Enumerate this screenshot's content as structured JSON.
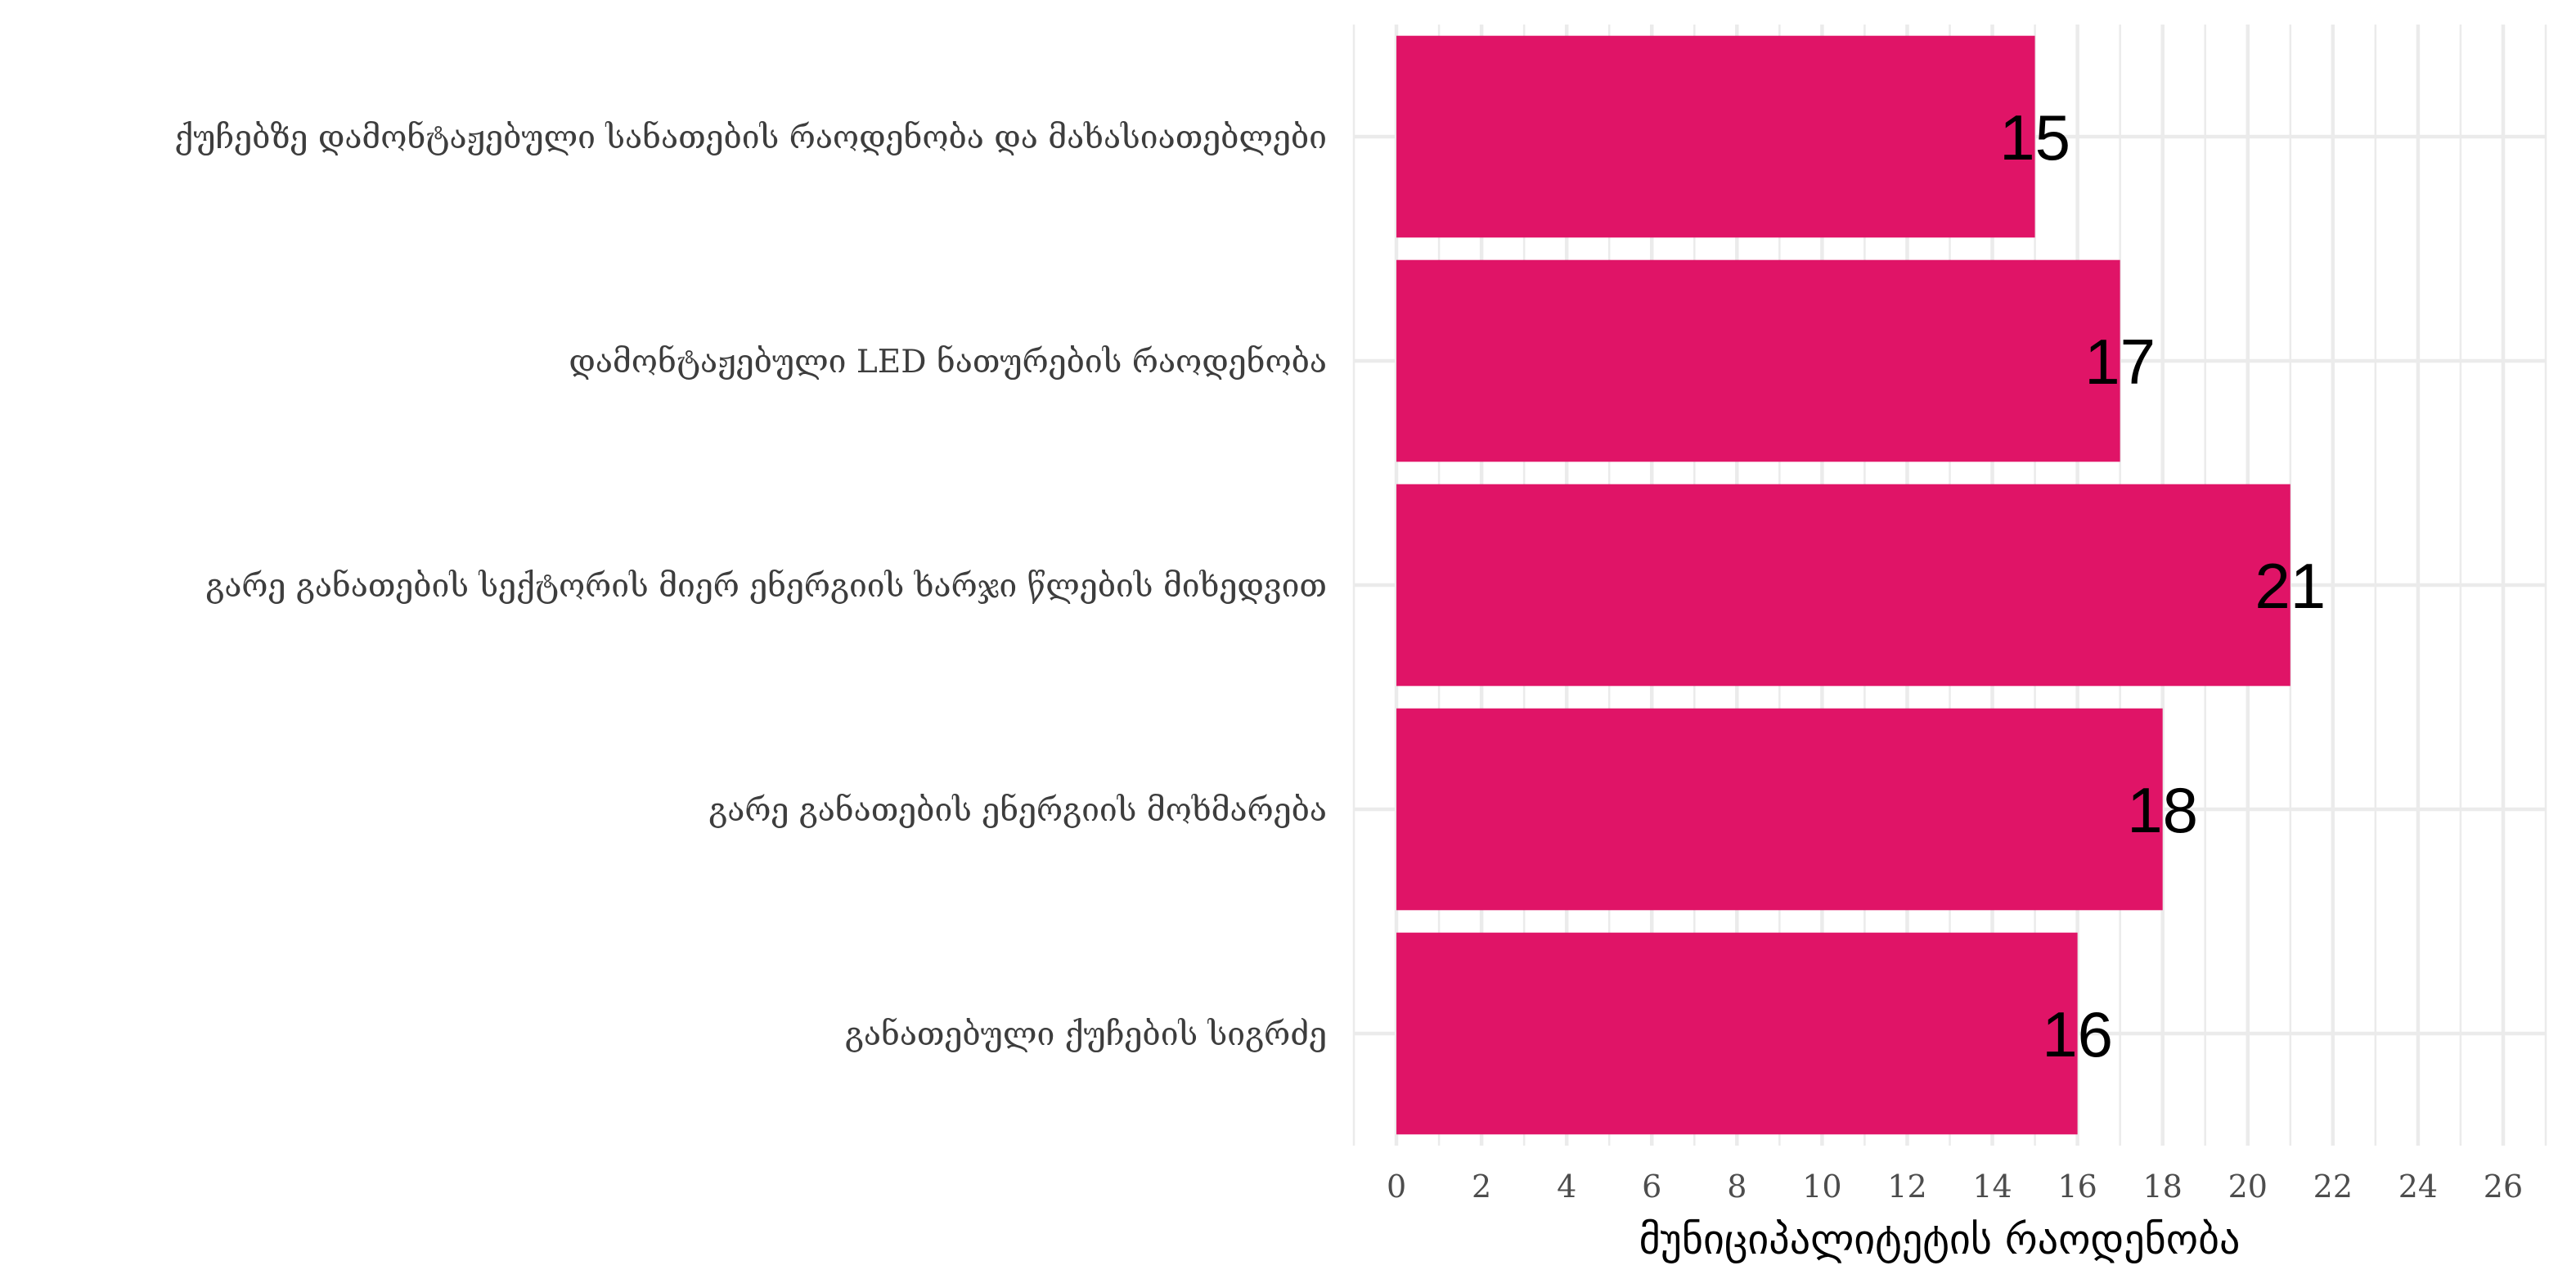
{
  "chart_data": {
    "type": "bar",
    "orientation": "horizontal",
    "categories": [
      "ქუჩებზე დამონტაჟებული სანათების რაოდენობა და მახასიათებლები",
      "დამონტაჟებული LED ნათურების რაოდენობა",
      "გარე განათების სექტორის მიერ ენერგიის ხარჯი წლების მიხედვით",
      "გარე განათების ენერგიის მოხმარება",
      "განათებული ქუჩების სიგრძე"
    ],
    "values": [
      15,
      17,
      21,
      18,
      16
    ],
    "data_labels": [
      "15",
      "17",
      "21",
      "18",
      "16"
    ],
    "xlabel": "მუნიციპალიტეტის რაოდენობა",
    "ylabel": "",
    "xlim": [
      -1,
      27
    ],
    "x_ticks": [
      0,
      2,
      4,
      6,
      8,
      10,
      12,
      14,
      16,
      18,
      20,
      22,
      24,
      26
    ],
    "grid": true,
    "bar_color": "#E01467",
    "grid_color": "#ebebeb"
  }
}
